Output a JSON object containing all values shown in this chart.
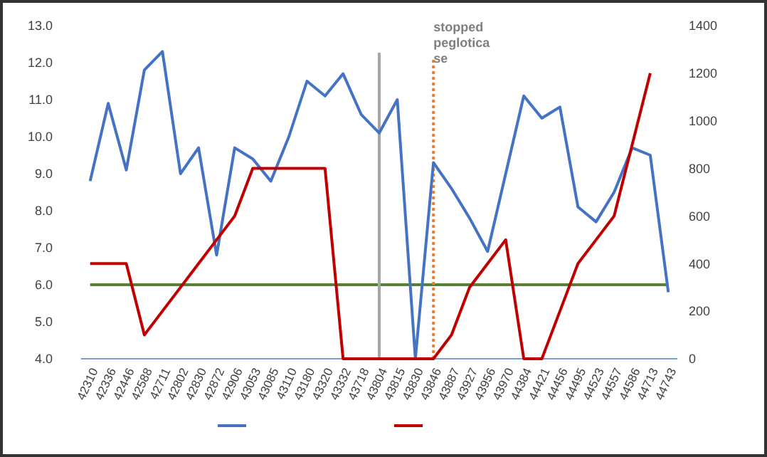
{
  "chart_data": {
    "type": "line",
    "categories": [
      "42310",
      "42336",
      "42446",
      "42588",
      "42711",
      "42802",
      "42830",
      "42872",
      "42906",
      "43053",
      "43085",
      "43110",
      "43180",
      "43320",
      "43332",
      "43718",
      "43804",
      "43815",
      "43830",
      "43846",
      "43887",
      "43927",
      "43956",
      "43970",
      "44384",
      "44421",
      "44456",
      "44495",
      "44523",
      "44557",
      "44586",
      "44713",
      "44743"
    ],
    "series": [
      {
        "color": "#4472c4",
        "values": [
          8.8,
          10.9,
          9.1,
          11.8,
          12.3,
          9.0,
          9.7,
          6.8,
          9.7,
          9.4,
          8.8,
          10.0,
          11.5,
          11.1,
          11.7,
          10.6,
          10.1,
          11.0,
          4.0,
          9.3,
          8.6,
          7.8,
          6.9,
          9.0,
          11.1,
          10.5,
          10.8,
          8.1,
          7.7,
          8.5,
          9.7,
          9.5,
          5.8
        ]
      },
      {
        "color": "#c00000",
        "axis": "y2",
        "values": [
          400,
          400,
          400,
          100,
          200,
          300,
          400,
          500,
          600,
          800,
          800,
          800,
          800,
          800,
          0,
          0,
          0,
          0,
          0,
          0,
          100,
          300,
          400,
          500,
          0,
          0,
          200,
          400,
          500,
          600,
          900,
          1200,
          null
        ]
      }
    ],
    "ylim": [
      4,
      13
    ],
    "yticks": [
      {
        "value": 4,
        "label": "4.0"
      },
      {
        "value": 5,
        "label": "5.0"
      },
      {
        "value": 6,
        "label": "6.0"
      },
      {
        "value": 7,
        "label": "7.0"
      },
      {
        "value": 8,
        "label": "8.0"
      },
      {
        "value": 9,
        "label": "9.0"
      },
      {
        "value": 10,
        "label": "10.0"
      },
      {
        "value": 11,
        "label": "11.0"
      },
      {
        "value": 12,
        "label": "12.0"
      },
      {
        "value": 13,
        "label": "13.0"
      }
    ],
    "y2lim": [
      0,
      1400
    ],
    "y2ticks": [
      0,
      200,
      400,
      600,
      800,
      1000,
      1200,
      1400
    ],
    "ref_lines": [
      {
        "axis": "y",
        "value": 6,
        "color": "#548235"
      },
      {
        "axis": "x",
        "value": "43804",
        "color": "#a6a6a6"
      },
      {
        "axis": "x",
        "value": "43846",
        "label": "stopped pegloticase",
        "color": "#ed7d31",
        "line_style": "dotted"
      }
    ],
    "grid": false,
    "marker": "none",
    "line_style": "solid"
  }
}
